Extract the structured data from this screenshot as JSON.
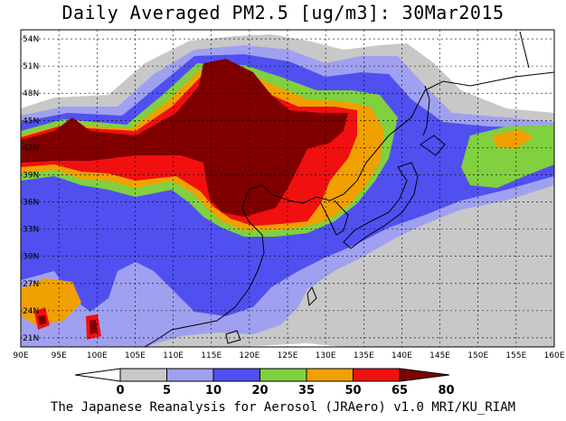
{
  "title": "Daily Averaged PM2.5 [ug/m3]: 30Mar2015",
  "credit": "The Japanese Reanalysis for Aerosol (JRAero) v1.0 MRI/KU_RIAM",
  "lon_labels": [
    "90E",
    "95E",
    "100E",
    "105E",
    "110E",
    "115E",
    "120E",
    "125E",
    "130E",
    "135E",
    "140E",
    "145E",
    "150E",
    "155E",
    "160E"
  ],
  "lat_labels": [
    "54N",
    "51N",
    "48N",
    "45N",
    "42N",
    "39N",
    "36N",
    "33N",
    "30N",
    "27N",
    "24N",
    "21N"
  ],
  "extent": {
    "lon": [
      90,
      160
    ],
    "lat": [
      20,
      55
    ]
  },
  "legend": {
    "labels": [
      "0",
      "5",
      "10",
      "20",
      "35",
      "50",
      "65",
      "80"
    ],
    "colors": [
      "#ffffff",
      "#c8c8c8",
      "#a0a0f0",
      "#5050f0",
      "#80d040",
      "#f0a000",
      "#f01010",
      "#800000"
    ]
  }
}
